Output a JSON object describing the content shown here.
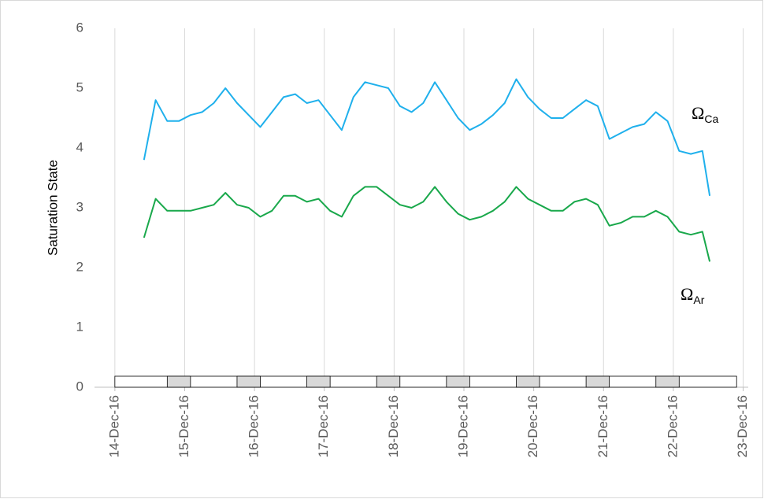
{
  "chart_data": {
    "type": "line",
    "y_label": "Saturation State",
    "x": [
      "2016-12-14 10:00",
      "2016-12-14 14:00",
      "2016-12-14 18:00",
      "2016-12-14 22:00",
      "2016-12-15 02:00",
      "2016-12-15 06:00",
      "2016-12-15 10:00",
      "2016-12-15 14:00",
      "2016-12-15 18:00",
      "2016-12-15 22:00",
      "2016-12-16 02:00",
      "2016-12-16 06:00",
      "2016-12-16 10:00",
      "2016-12-16 14:00",
      "2016-12-16 18:00",
      "2016-12-16 22:00",
      "2016-12-17 02:00",
      "2016-12-17 06:00",
      "2016-12-17 10:00",
      "2016-12-17 14:00",
      "2016-12-17 18:00",
      "2016-12-17 22:00",
      "2016-12-18 02:00",
      "2016-12-18 06:00",
      "2016-12-18 10:00",
      "2016-12-18 14:00",
      "2016-12-18 18:00",
      "2016-12-18 22:00",
      "2016-12-19 02:00",
      "2016-12-19 06:00",
      "2016-12-19 10:00",
      "2016-12-19 14:00",
      "2016-12-19 18:00",
      "2016-12-19 22:00",
      "2016-12-20 02:00",
      "2016-12-20 06:00",
      "2016-12-20 10:00",
      "2016-12-20 14:00",
      "2016-12-20 18:00",
      "2016-12-20 22:00",
      "2016-12-21 02:00",
      "2016-12-21 06:00",
      "2016-12-21 10:00",
      "2016-12-21 14:00",
      "2016-12-21 18:00",
      "2016-12-21 22:00",
      "2016-12-22 02:00",
      "2016-12-22 06:00",
      "2016-12-22 10:00",
      "2016-12-22 12:30"
    ],
    "series": [
      {
        "color": "#1fb0ec",
        "values": [
          3.8,
          4.8,
          4.45,
          4.45,
          4.55,
          4.6,
          4.75,
          5.0,
          4.75,
          4.55,
          4.35,
          4.6,
          4.85,
          4.9,
          4.75,
          4.8,
          4.55,
          4.3,
          4.85,
          5.1,
          5.05,
          5.0,
          4.7,
          4.6,
          4.75,
          5.1,
          4.8,
          4.5,
          4.3,
          4.4,
          4.55,
          4.75,
          5.15,
          4.85,
          4.65,
          4.5,
          4.5,
          4.65,
          4.8,
          4.7,
          4.15,
          4.25,
          4.35,
          4.4,
          4.6,
          4.45,
          3.95,
          3.9,
          3.95,
          3.2
        ]
      },
      {
        "color": "#19a84b",
        "values": [
          2.5,
          3.15,
          2.95,
          2.95,
          2.95,
          3.0,
          3.05,
          3.25,
          3.05,
          3.0,
          2.85,
          2.95,
          3.2,
          3.2,
          3.1,
          3.15,
          2.95,
          2.85,
          3.2,
          3.35,
          3.35,
          3.2,
          3.05,
          3.0,
          3.1,
          3.35,
          3.1,
          2.9,
          2.8,
          2.85,
          2.95,
          3.1,
          3.35,
          3.15,
          3.05,
          2.95,
          2.95,
          3.1,
          3.15,
          3.05,
          2.7,
          2.75,
          2.85,
          2.85,
          2.95,
          2.85,
          2.6,
          2.55,
          2.6,
          2.1
        ]
      }
    ],
    "annotations": [
      {
        "text": "Ω",
        "sub": "Ca"
      },
      {
        "text": "Ω",
        "sub": "Ar"
      }
    ],
    "xlim": [
      "2016-12-13 17:00",
      "2016-12-23 01:45"
    ],
    "xticks": [
      {
        "value": "2016-12-14",
        "label": "14-Dec-16"
      },
      {
        "value": "2016-12-15",
        "label": "15-Dec-16"
      },
      {
        "value": "2016-12-16",
        "label": "16-Dec-16"
      },
      {
        "value": "2016-12-17",
        "label": "17-Dec-16"
      },
      {
        "value": "2016-12-18",
        "label": "18-Dec-16"
      },
      {
        "value": "2016-12-19",
        "label": "19-Dec-16"
      },
      {
        "value": "2016-12-20",
        "label": "20-Dec-16"
      },
      {
        "value": "2016-12-21",
        "label": "21-Dec-16"
      },
      {
        "value": "2016-12-22",
        "label": "22-Dec-16"
      },
      {
        "value": "2016-12-23",
        "label": "23-Dec-16"
      }
    ],
    "ylim": [
      0,
      6
    ],
    "yticks": [
      0,
      1,
      2,
      3,
      4,
      5,
      6
    ],
    "grid": "x",
    "light_bar": {
      "start": "2016-12-14 00:00",
      "end": "2016-12-22 21:45",
      "night_color": "#d9d9d9",
      "nights": [
        [
          "2016-12-14 18:00",
          "2016-12-15 02:00"
        ],
        [
          "2016-12-15 18:00",
          "2016-12-16 02:00"
        ],
        [
          "2016-12-16 18:00",
          "2016-12-17 02:00"
        ],
        [
          "2016-12-17 18:00",
          "2016-12-18 02:00"
        ],
        [
          "2016-12-18 18:00",
          "2016-12-19 02:00"
        ],
        [
          "2016-12-19 18:00",
          "2016-12-20 02:00"
        ],
        [
          "2016-12-20 18:00",
          "2016-12-21 02:00"
        ],
        [
          "2016-12-21 18:00",
          "2016-12-22 02:00"
        ]
      ]
    }
  }
}
